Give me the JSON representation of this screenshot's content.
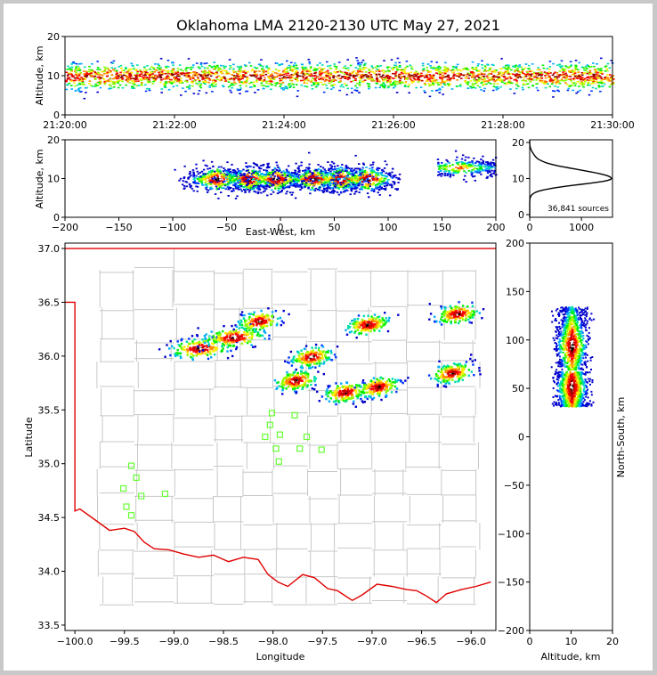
{
  "title": "Oklahoma LMA 2120-2130 UTC May 27, 2021",
  "colors": {
    "state_border": "#e00000",
    "county_lines": "#c8c8c8",
    "stations": "#66ff33",
    "frame_bg": "#c8c8c8"
  },
  "source_count": "36,841 sources",
  "chart_data": [
    {
      "panel": "time-height",
      "type": "scatter",
      "ylabel": "Altitude, km",
      "xlim": [
        "21:20:00",
        "21:30:00"
      ],
      "ylim": [
        0,
        20
      ],
      "x_ticks": [
        "21:20:00",
        "21:22:00",
        "21:24:00",
        "21:26:00",
        "21:28:00",
        "21:30:00"
      ],
      "y_ticks": [
        "0",
        "10",
        "20"
      ],
      "altitude_band_km": [
        5,
        14
      ],
      "altitude_core_km": 10
    },
    {
      "panel": "east-west-altitude",
      "type": "scatter",
      "xlabel": "East-West, km",
      "ylabel": "Altitude, km",
      "xlim": [
        -200,
        200
      ],
      "ylim": [
        0,
        20
      ],
      "x_ticks": [
        "−200",
        "−150",
        "−100",
        "−50",
        "0",
        "50",
        "100",
        "150",
        "200"
      ],
      "y_ticks": [
        "0",
        "10",
        "20"
      ],
      "clusters": [
        {
          "x_range": [
            -100,
            110
          ],
          "alt_range": [
            6,
            14
          ],
          "core_alt": 10
        },
        {
          "x_range": [
            145,
            200
          ],
          "alt_range": [
            10,
            16
          ],
          "core_alt": 13
        }
      ]
    },
    {
      "panel": "altitude-histogram",
      "type": "line",
      "ylim": [
        0,
        20
      ],
      "xlim": [
        0,
        1600
      ],
      "x_ticks": [
        "0",
        "1000"
      ],
      "y_ticks": [
        "0",
        "10",
        "20"
      ],
      "peak_altitude_km": 10,
      "peak_count": 1580
    },
    {
      "panel": "plan-view-map",
      "type": "scatter",
      "xlabel": "Longitude",
      "ylabel": "Latitude",
      "xlim": [
        -100.1,
        -95.75
      ],
      "ylim": [
        33.45,
        37.05
      ],
      "x_ticks": [
        "−100.0",
        "−99.5",
        "−99.0",
        "−98.5",
        "−98.0",
        "−97.5",
        "−97.0",
        "−96.5",
        "−96.0"
      ],
      "y_ticks": [
        "33.5",
        "34.0",
        "34.5",
        "35.0",
        "35.5",
        "36.0",
        "36.5",
        "37.0"
      ],
      "storm_clusters": [
        {
          "lon": -98.75,
          "lat": 36.08
        },
        {
          "lon": -98.4,
          "lat": 36.18
        },
        {
          "lon": -98.15,
          "lat": 36.33
        },
        {
          "lon": -97.62,
          "lat": 36.0
        },
        {
          "lon": -97.78,
          "lat": 35.78
        },
        {
          "lon": -97.28,
          "lat": 35.67
        },
        {
          "lon": -96.95,
          "lat": 35.72
        },
        {
          "lon": -97.05,
          "lat": 36.3
        },
        {
          "lon": -96.15,
          "lat": 36.4
        },
        {
          "lon": -96.2,
          "lat": 35.85
        }
      ],
      "stations": [
        {
          "lon": -98.01,
          "lat": 35.47
        },
        {
          "lon": -97.78,
          "lat": 35.45
        },
        {
          "lon": -98.03,
          "lat": 35.36
        },
        {
          "lon": -97.93,
          "lat": 35.27
        },
        {
          "lon": -98.08,
          "lat": 35.25
        },
        {
          "lon": -97.66,
          "lat": 35.25
        },
        {
          "lon": -97.97,
          "lat": 35.14
        },
        {
          "lon": -97.73,
          "lat": 35.14
        },
        {
          "lon": -97.51,
          "lat": 35.13
        },
        {
          "lon": -97.94,
          "lat": 35.02
        },
        {
          "lon": -99.43,
          "lat": 34.98
        },
        {
          "lon": -99.38,
          "lat": 34.87
        },
        {
          "lon": -99.51,
          "lat": 34.77
        },
        {
          "lon": -99.33,
          "lat": 34.7
        },
        {
          "lon": -99.09,
          "lat": 34.72
        },
        {
          "lon": -99.48,
          "lat": 34.6
        },
        {
          "lon": -99.43,
          "lat": 34.52
        }
      ]
    },
    {
      "panel": "north-south-altitude",
      "type": "scatter",
      "xlabel": "Altitude, km",
      "ylabel": "North-South, km",
      "xlim": [
        0,
        20
      ],
      "ylim": [
        -200,
        200
      ],
      "x_ticks": [
        "0",
        "10",
        "20"
      ],
      "y_ticks": [
        "200",
        "150",
        "100",
        "50",
        "0",
        "−50",
        "−100",
        "−150",
        "−200"
      ],
      "clusters": [
        {
          "ns_range": [
            70,
            135
          ],
          "alt_range": [
            6,
            15
          ],
          "core_alt": 10,
          "core_ns": 95
        },
        {
          "ns_range": [
            32,
            68
          ],
          "alt_range": [
            6,
            15
          ],
          "core_alt": 10,
          "core_ns": 52
        }
      ]
    }
  ]
}
